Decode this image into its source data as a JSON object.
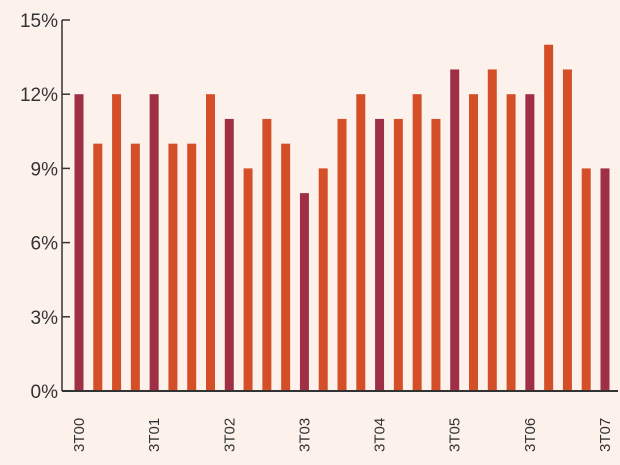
{
  "chart_data": {
    "type": "bar",
    "title": "",
    "xlabel": "",
    "ylabel": "",
    "ylim": [
      0,
      15
    ],
    "yticks": [
      "0%",
      "3%",
      "6%",
      "9%",
      "12%",
      "15%"
    ],
    "grid": false,
    "categories": [
      "3T00",
      "",
      "",
      "",
      "3T01",
      "",
      "",
      "",
      "3T02",
      "",
      "",
      "",
      "3T03",
      "",
      "",
      "",
      "3T04",
      "",
      "",
      "",
      "3T05",
      "",
      "",
      "",
      "3T06",
      "",
      "",
      "",
      "3T07"
    ],
    "values": [
      12,
      10,
      12,
      10,
      12,
      10,
      10,
      12,
      11,
      9,
      11,
      10,
      8,
      9,
      11,
      12,
      11,
      11,
      12,
      11,
      13,
      12,
      13,
      12,
      12,
      14,
      13,
      9,
      9
    ],
    "bar_colors": [
      "#9e2f45",
      "#d44e28",
      "#d44e28",
      "#d44e28",
      "#9e2f45",
      "#d44e28",
      "#d44e28",
      "#d44e28",
      "#9e2f45",
      "#d44e28",
      "#d44e28",
      "#d44e28",
      "#9e2f45",
      "#d44e28",
      "#d44e28",
      "#d44e28",
      "#9e2f45",
      "#d44e28",
      "#d44e28",
      "#d44e28",
      "#9e2f45",
      "#d44e28",
      "#d44e28",
      "#d44e28",
      "#9e2f45",
      "#d44e28",
      "#d44e28",
      "#d44e28",
      "#9e2f45"
    ],
    "colors": {
      "highlight": "#9e2f45",
      "accent": "#d44e28",
      "axis": "#333333",
      "background": "#fdf1ec"
    }
  }
}
